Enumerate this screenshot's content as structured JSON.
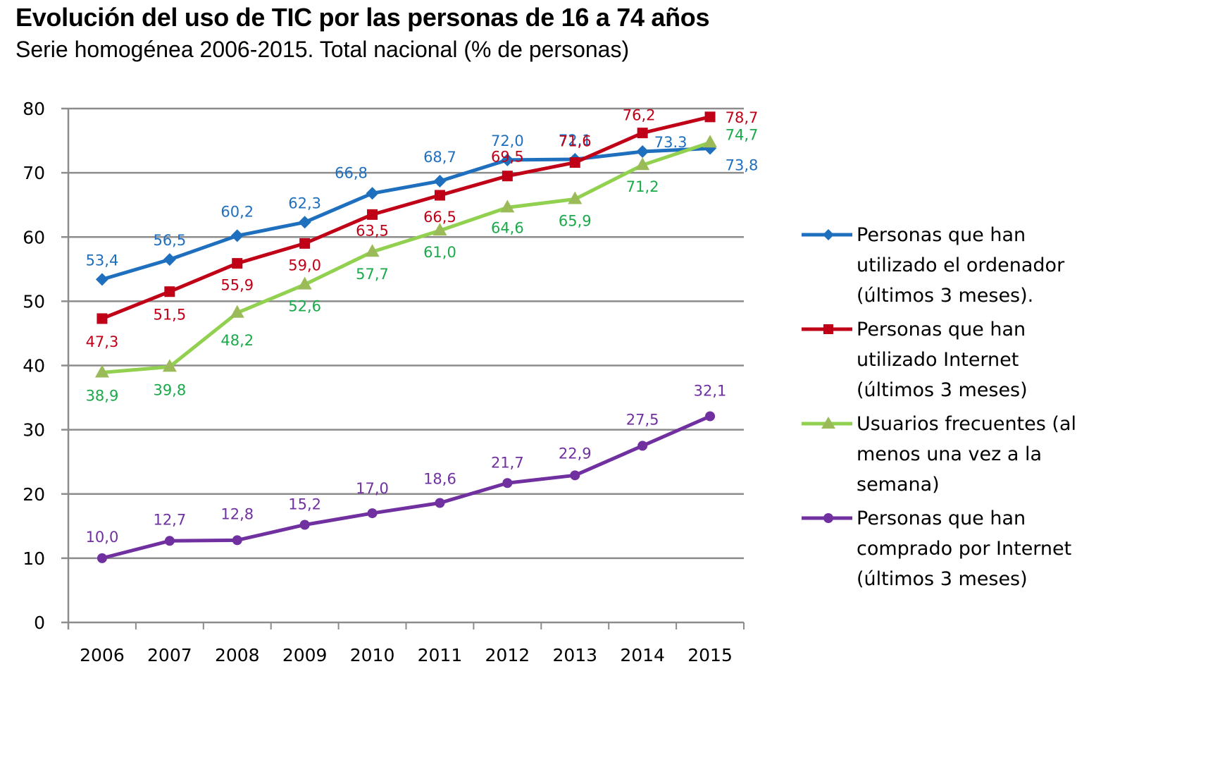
{
  "chart_data": {
    "type": "line",
    "title": "Evolución del uso de TIC por las personas de 16 a 74 años",
    "subtitle": "Serie homogénea 2006-2015. Total nacional (% de personas)",
    "xlabel": "",
    "ylabel": "",
    "x": [
      "2006",
      "2007",
      "2008",
      "2009",
      "2010",
      "2011",
      "2012",
      "2013",
      "2014",
      "2015"
    ],
    "ylim": [
      0,
      80
    ],
    "yticks": [
      "0",
      "10",
      "20",
      "30",
      "40",
      "50",
      "60",
      "70",
      "80"
    ],
    "grid": true,
    "legend_position": "right",
    "series": [
      {
        "name": "Personas que han utilizado el ordenador (últimos 3 meses).",
        "legend_lines": [
          "Personas que han",
          "utilizado el ordenador",
          "(últimos 3 meses)."
        ],
        "color": "#1f6fbf",
        "label_color": "#1f6fbf",
        "marker": "diamond",
        "values": [
          53.4,
          56.5,
          60.2,
          62.3,
          66.8,
          68.7,
          72.0,
          72.1,
          73.3,
          73.8
        ],
        "labels": [
          "53,4",
          "56,5",
          "60,2",
          "62,3",
          "66,8",
          "68,7",
          "72,0",
          "72,1",
          "73.3",
          "73,8"
        ]
      },
      {
        "name": "Personas que han utilizado Internet (últimos 3 meses)",
        "legend_lines": [
          "Personas que han",
          "utilizado Internet",
          "(últimos 3 meses)"
        ],
        "color": "#c00017",
        "label_color": "#c00017",
        "marker": "square",
        "values": [
          47.3,
          51.5,
          55.9,
          59.0,
          63.5,
          66.5,
          69.5,
          71.6,
          76.2,
          78.7
        ],
        "labels": [
          "47,3",
          "51,5",
          "55,9",
          "59,0",
          "63,5",
          "66,5",
          "69,5",
          "71,6",
          "76,2",
          "78,7"
        ]
      },
      {
        "name": "Usuarios frecuentes (al menos una vez a la semana)",
        "legend_lines": [
          "Usuarios frecuentes (al",
          "menos una vez a la",
          "semana)"
        ],
        "color": "#92d050",
        "marker_color": "#9bbb59",
        "label_color": "#1aaa4a",
        "marker": "triangle",
        "values": [
          38.9,
          39.8,
          48.2,
          52.6,
          57.7,
          61.0,
          64.6,
          65.9,
          71.2,
          74.7
        ],
        "labels": [
          "38,9",
          "39,8",
          "48,2",
          "52,6",
          "57,7",
          "61,0",
          "64,6",
          "65,9",
          "71,2",
          "74,7"
        ]
      },
      {
        "name": "Personas que han comprado por Internet (últimos 3 meses)",
        "legend_lines": [
          "Personas que han",
          "comprado por Internet",
          "(últimos 3 meses)"
        ],
        "color": "#7030a0",
        "label_color": "#7030a0",
        "marker": "circle",
        "values": [
          10.0,
          12.7,
          12.8,
          15.2,
          17.0,
          18.6,
          21.7,
          22.9,
          27.5,
          32.1
        ],
        "labels": [
          "10,0",
          "12,7",
          "12,8",
          "15,2",
          "17,0",
          "18,6",
          "21,7",
          "22,9",
          "27,5",
          "32,1"
        ]
      }
    ]
  }
}
